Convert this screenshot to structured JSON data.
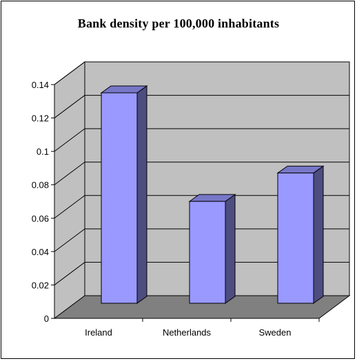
{
  "chart_data": {
    "type": "bar",
    "style": "3d-column",
    "title": "Bank density per 100,000 inhabitants",
    "xlabel": "",
    "ylabel": "",
    "categories": [
      "Ireland",
      "Netherlands",
      "Sweden"
    ],
    "values": [
      0.126,
      0.061,
      0.078
    ],
    "ylim": [
      0,
      0.14
    ],
    "yticks": [
      0,
      0.02,
      0.04,
      0.06,
      0.08,
      0.1,
      0.12,
      0.14
    ],
    "ytick_labels": [
      "0",
      "0.02",
      "0.04",
      "0.06",
      "0.08",
      "0.1",
      "0.12",
      "0.14"
    ],
    "grid": true,
    "legend": "none",
    "colors": {
      "bar_front": "#9999ff",
      "bar_side": "#4d4d80",
      "bar_top": "#7777c8",
      "back_wall": "#c0c0c0",
      "side_wall": "#c0c0c0",
      "floor": "#808080"
    }
  }
}
